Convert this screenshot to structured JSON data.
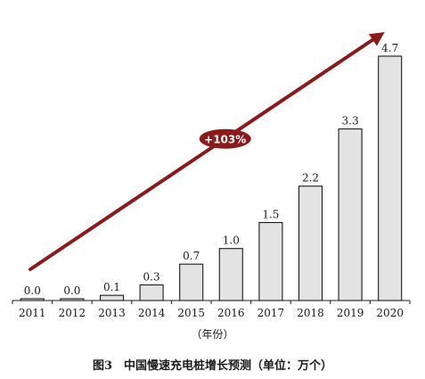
{
  "chart_data": {
    "type": "bar",
    "categories": [
      "2011",
      "2012",
      "2013",
      "2014",
      "2015",
      "2016",
      "2017",
      "2018",
      "2019",
      "2020"
    ],
    "values": [
      0.0,
      0.0,
      0.1,
      0.3,
      0.7,
      1.0,
      1.5,
      2.2,
      3.3,
      4.7
    ],
    "value_labels": [
      "0.0",
      "0.0",
      "0.1",
      "0.3",
      "0.7",
      "1.0",
      "1.5",
      "2.2",
      "3.3",
      "4.7"
    ],
    "xlabel": "（年份）",
    "ylabel": "",
    "ylim": [
      0,
      5.3
    ],
    "grid": false,
    "annotation": {
      "text": "+103%",
      "type": "trend-arrow"
    },
    "caption": "图3　中国慢速充电桩增长预测（单位：万个）",
    "colors": {
      "bar_fill": "#e3e3e3",
      "bar_stroke": "#1a1a1a",
      "arrow": "#8b1a1a"
    }
  }
}
